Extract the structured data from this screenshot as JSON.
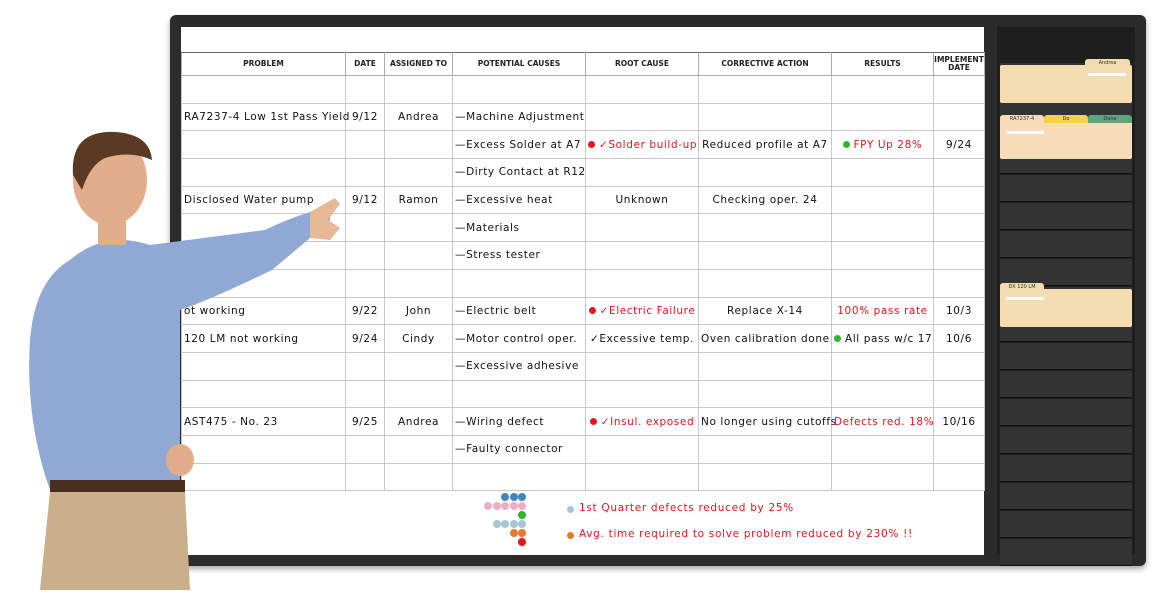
{
  "headers": [
    "PROBLEM",
    "DATE",
    "ASSIGNED TO",
    "POTENTIAL CAUSES",
    "ROOT CAUSE",
    "CORRECTIVE ACTION",
    "RESULTS",
    "IMPLEMENT DATE"
  ],
  "colors": {
    "red": "#e8141c",
    "green": "#2db52d",
    "frame": "#2b2b2b",
    "folder": "#f3ddb0"
  },
  "rows": [
    [],
    [
      {
        "t": "RA7237-4 Low 1st Pass Yield"
      },
      {
        "t": "9/12"
      },
      {
        "t": "Andrea"
      },
      {
        "t": "—Machine Adjustment"
      }
    ],
    [
      {
        "t": ""
      },
      {
        "t": ""
      },
      {
        "t": ""
      },
      {
        "t": "—Excess Solder at A7"
      },
      {
        "t": "✓Solder build-up",
        "red": true,
        "dot": "red"
      },
      {
        "t": "Reduced profile at A7"
      },
      {
        "t": "FPY Up 28%",
        "red": true,
        "dot": "green"
      },
      {
        "t": "9/24"
      }
    ],
    [
      {
        "t": ""
      },
      {
        "t": ""
      },
      {
        "t": ""
      },
      {
        "t": "—Dirty Contact at R12"
      }
    ],
    [
      {
        "t": "Disclosed Water pump"
      },
      {
        "t": "9/12"
      },
      {
        "t": "Ramon"
      },
      {
        "t": "—Excessive heat"
      },
      {
        "t": "Unknown"
      },
      {
        "t": "Checking oper. 24"
      }
    ],
    [
      {
        "t": ""
      },
      {
        "t": ""
      },
      {
        "t": ""
      },
      {
        "t": "—Materials"
      }
    ],
    [
      {
        "t": ""
      },
      {
        "t": ""
      },
      {
        "t": ""
      },
      {
        "t": "—Stress tester"
      }
    ],
    [],
    [
      {
        "t": "ot working"
      },
      {
        "t": "9/22"
      },
      {
        "t": "John"
      },
      {
        "t": "—Electric belt"
      },
      {
        "t": "✓Electric Failure",
        "red": true,
        "dot": "red"
      },
      {
        "t": "Replace X-14"
      },
      {
        "t": "100% pass rate",
        "red": true
      },
      {
        "t": "10/3"
      }
    ],
    [
      {
        "t": "120 LM not working"
      },
      {
        "t": "9/24"
      },
      {
        "t": "Cindy"
      },
      {
        "t": "—Motor control oper."
      },
      {
        "t": "✓Excessive temp."
      },
      {
        "t": "Oven calibration done"
      },
      {
        "t": "All pass w/c 17",
        "dot": "green"
      },
      {
        "t": "10/6"
      }
    ],
    [
      {
        "t": ""
      },
      {
        "t": ""
      },
      {
        "t": ""
      },
      {
        "t": "—Excessive adhesive"
      }
    ],
    [],
    [
      {
        "t": "AST475 - No. 23"
      },
      {
        "t": "9/25"
      },
      {
        "t": "Andrea"
      },
      {
        "t": "—Wiring defect"
      },
      {
        "t": "✓Insul. exposed",
        "red": true,
        "dot": "red"
      },
      {
        "t": "No longer using cutoffs"
      },
      {
        "t": "Defects red. 18%",
        "red": true
      },
      {
        "t": "10/16"
      }
    ],
    [
      {
        "t": ""
      },
      {
        "t": ""
      },
      {
        "t": ""
      },
      {
        "t": "—Faulty connector"
      }
    ],
    []
  ],
  "footer": {
    "note1": "1st Quarter defects reduced by 25%",
    "note2": "Avg. time required to solve problem reduced by 230% !!"
  },
  "rack": {
    "folder1_tab": "Andrea",
    "folder2_tabs": [
      "RA7237-4",
      "Do",
      "Done"
    ],
    "folder3_tab": "DX 120 LM"
  }
}
